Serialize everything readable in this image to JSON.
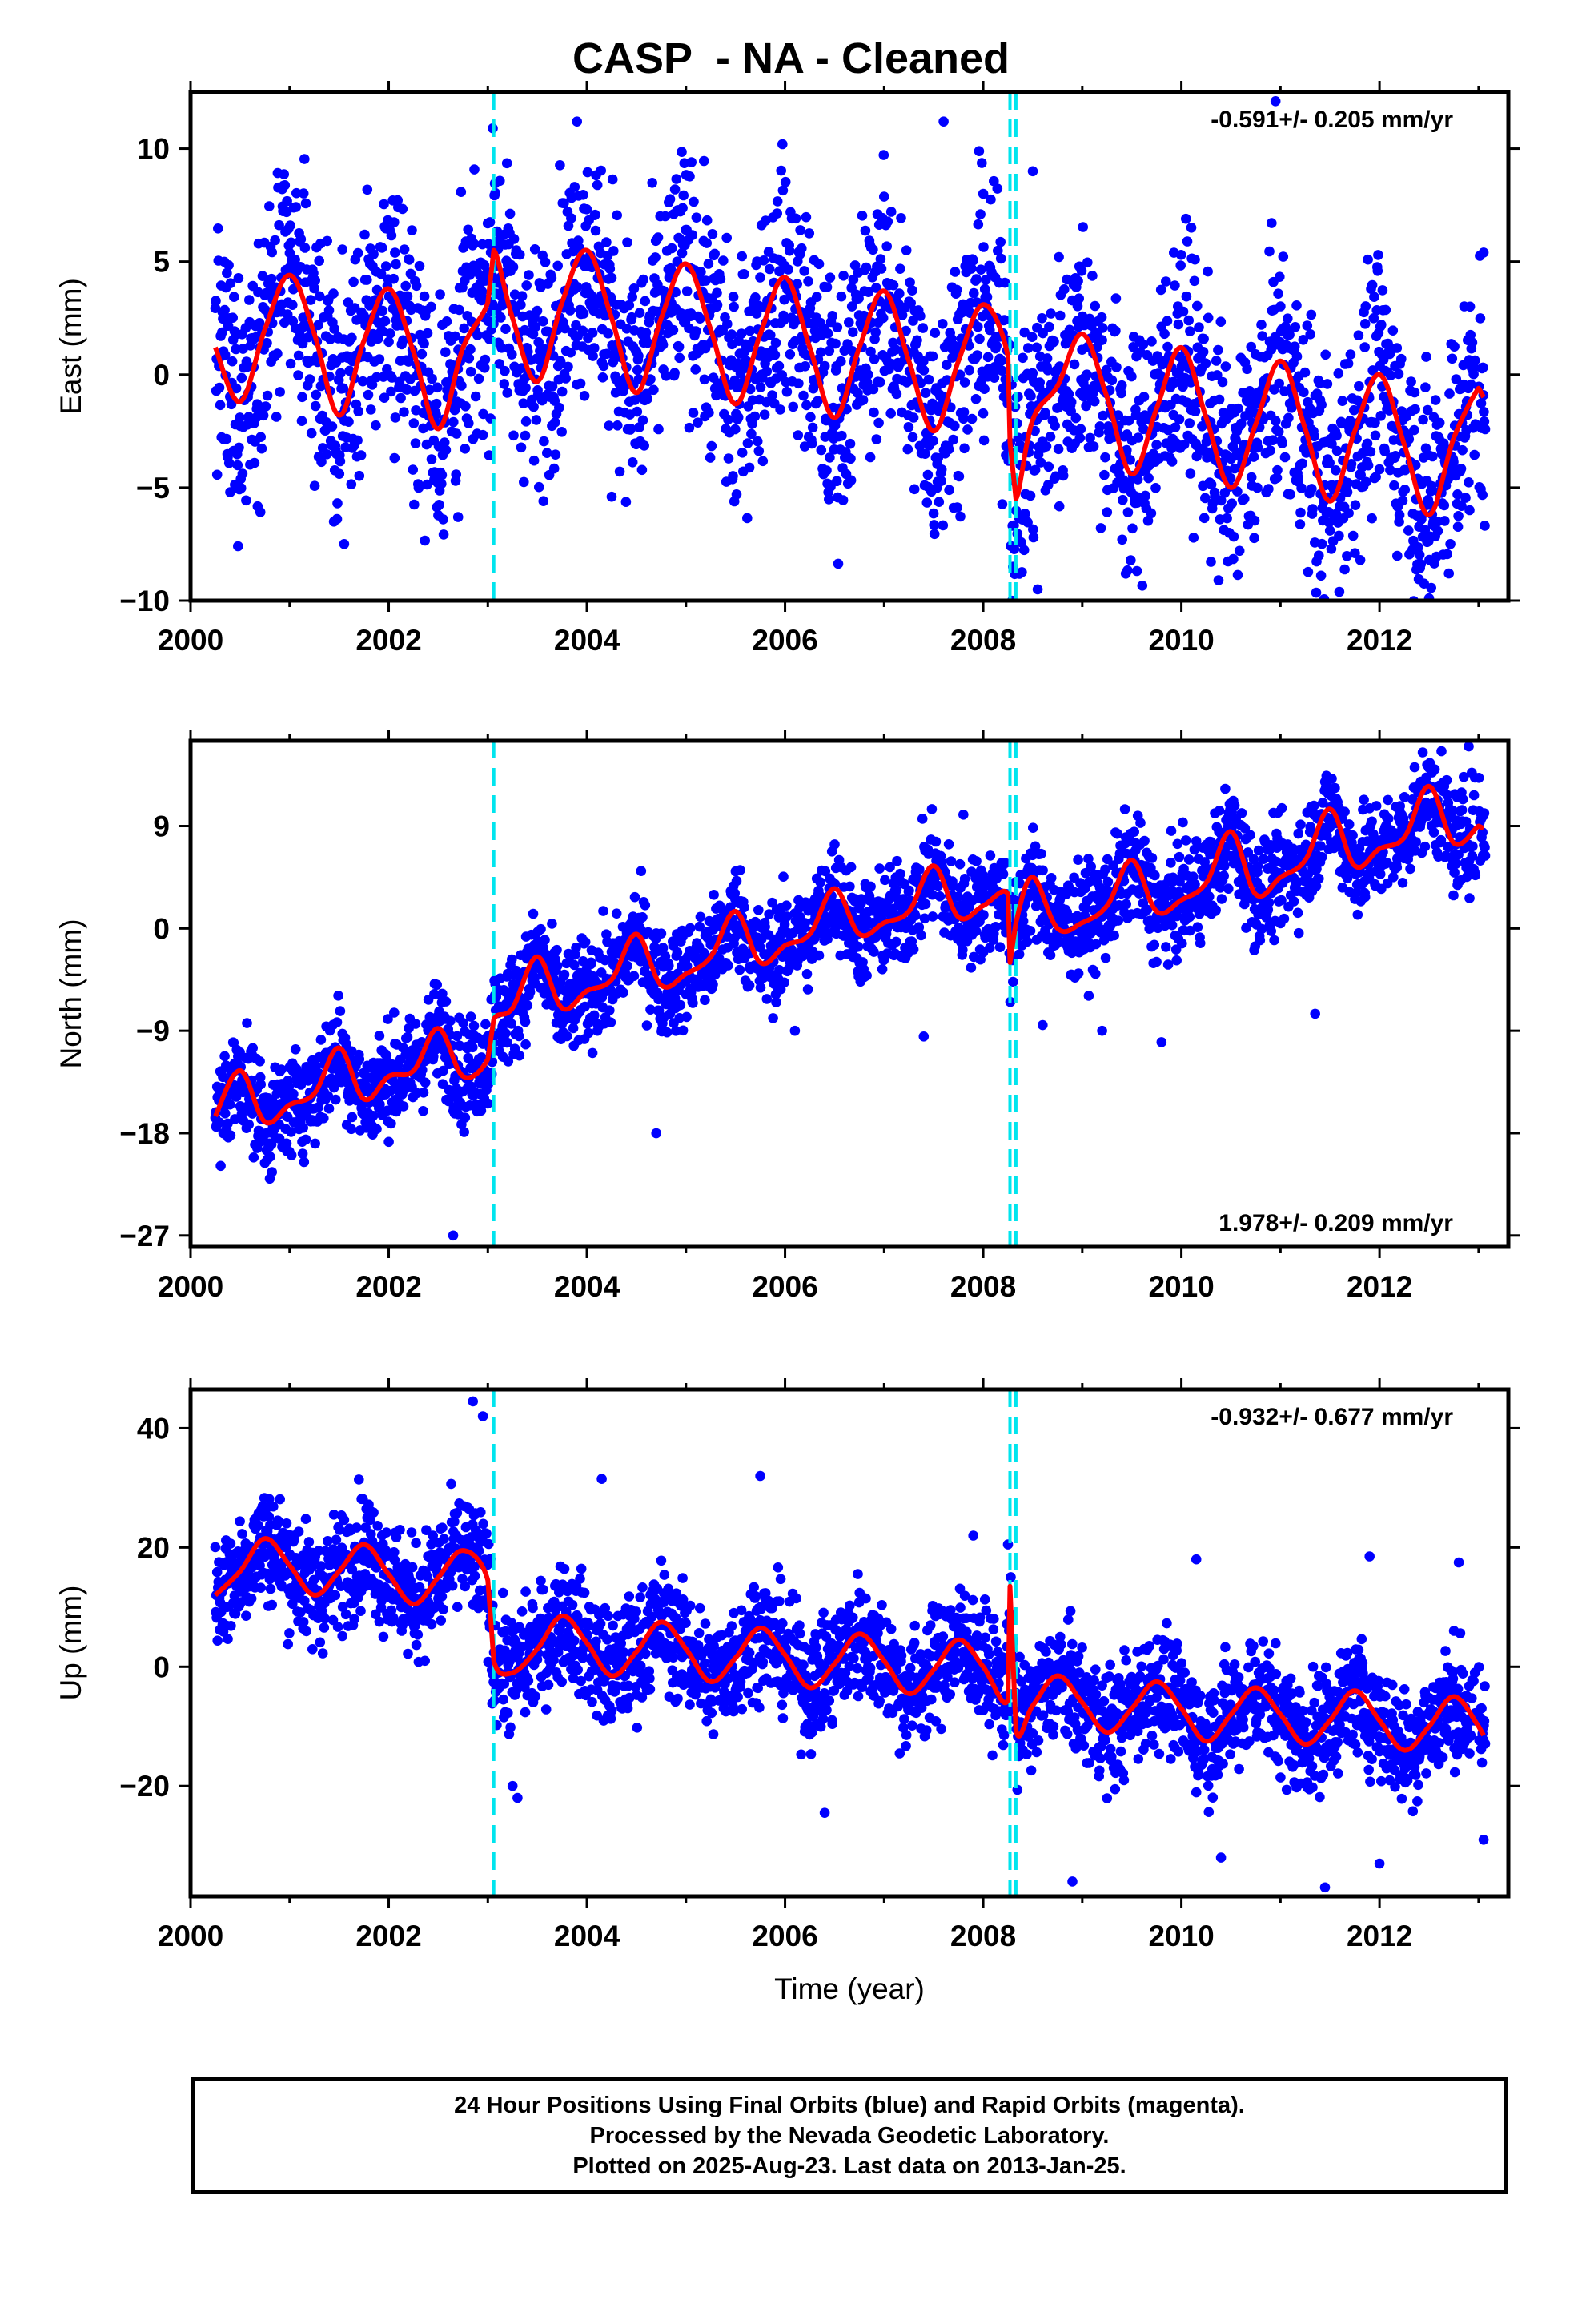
{
  "page": {
    "title": "CASP  - NA - Cleaned",
    "footer_lines": [
      "24 Hour Positions Using Final Orbits (blue) and Rapid Orbits (magenta).",
      "Processed by the Nevada Geodetic Laboratory.",
      "Plotted on 2025-Aug-23. Last data on 2013-Jan-25."
    ]
  },
  "colors": {
    "final_orbit_points": "#0000ff",
    "model_fit": "#ff0000",
    "offset_lines": "#00e5ee",
    "frame": "#000000"
  },
  "chart_data": [
    {
      "type": "scatter",
      "panel": "east",
      "ylabel": "East (mm)",
      "xlabel": "",
      "xlim": [
        2000,
        2013.3
      ],
      "ylim": [
        -10,
        12.5
      ],
      "x_ticks": [
        2000,
        2002,
        2004,
        2006,
        2008,
        2010,
        2012
      ],
      "y_ticks": [
        -10,
        -5,
        0,
        5,
        10
      ],
      "y_tick_labels": [
        "−10",
        "−5",
        "0",
        "5",
        "10"
      ],
      "rate_label": "-0.591+/- 0.205 mm/yr",
      "rate_label_position": "top-right",
      "offset_lines_x": [
        2003.06,
        2008.27,
        2008.33
      ],
      "fit": {
        "name": "model",
        "color": "#ff0000",
        "x": [
          2000.25,
          2000.5,
          2000.75,
          2001.0,
          2001.25,
          2001.5,
          2001.75,
          2002.0,
          2002.25,
          2002.5,
          2002.75,
          2003.0,
          2003.06,
          2003.25,
          2003.5,
          2003.75,
          2004.0,
          2004.25,
          2004.5,
          2004.75,
          2005.0,
          2005.25,
          2005.5,
          2005.75,
          2006.0,
          2006.25,
          2006.5,
          2006.75,
          2007.0,
          2007.25,
          2007.5,
          2007.75,
          2008.0,
          2008.25,
          2008.27,
          2008.33,
          2008.5,
          2008.75,
          2009.0,
          2009.25,
          2009.5,
          2009.75,
          2010.0,
          2010.25,
          2010.5,
          2010.75,
          2011.0,
          2011.25,
          2011.5,
          2011.75,
          2012.0,
          2012.25,
          2012.5,
          2012.75,
          2013.0,
          2013.05
        ],
        "y": [
          1.2,
          -1.2,
          2.0,
          4.4,
          1.8,
          -1.8,
          1.5,
          3.8,
          1.0,
          -2.4,
          1.2,
          3.2,
          5.5,
          2.5,
          -0.3,
          3.2,
          5.5,
          2.5,
          -0.8,
          2.5,
          4.9,
          2.0,
          -1.3,
          1.8,
          4.3,
          1.2,
          -1.9,
          1.2,
          3.7,
          0.6,
          -2.5,
          0.6,
          3.1,
          0.8,
          -3.0,
          -5.5,
          -2.0,
          -0.5,
          1.8,
          -1.0,
          -4.4,
          -1.5,
          1.2,
          -1.9,
          -5.0,
          -2.2,
          0.6,
          -2.4,
          -5.6,
          -2.5,
          0.0,
          -3.1,
          -6.2,
          -2.8,
          -0.6,
          -1.0
        ]
      },
      "point_band": {
        "lower": -3.5,
        "upper": 3.5,
        "outliers": [
          [
            2000.4,
            -5.2
          ],
          [
            2002.7,
            -6.3
          ],
          [
            2003.05,
            10.9
          ],
          [
            2003.9,
            11.2
          ],
          [
            2004.25,
            -5.4
          ],
          [
            2007.6,
            11.2
          ],
          [
            2008.0,
            8.0
          ],
          [
            2008.5,
            9.0
          ],
          [
            2008.55,
            -9.5
          ],
          [
            2010.1,
            6.5
          ],
          [
            2010.95,
            12.1
          ],
          [
            2012.5,
            -9.9
          ],
          [
            2012.7,
            -8.8
          ],
          [
            2013.05,
            5.4
          ]
        ]
      }
    },
    {
      "type": "scatter",
      "panel": "north",
      "ylabel": "North (mm)",
      "xlabel": "",
      "xlim": [
        2000,
        2013.3
      ],
      "ylim": [
        -28,
        16.5
      ],
      "x_ticks": [
        2000,
        2002,
        2004,
        2006,
        2008,
        2010,
        2012
      ],
      "y_ticks": [
        -27,
        -18,
        -9,
        0,
        9
      ],
      "y_tick_labels": [
        "−27",
        "−18",
        "−9",
        "0",
        "9"
      ],
      "rate_label": "1.978+/- 0.209 mm/yr",
      "rate_label_position": "bottom-right",
      "offset_lines_x": [
        2003.06,
        2008.27,
        2008.33
      ],
      "fit": {
        "name": "model",
        "color": "#ff0000",
        "x": [
          2000.25,
          2000.5,
          2000.75,
          2001.0,
          2001.25,
          2001.5,
          2001.75,
          2002.0,
          2002.25,
          2002.5,
          2002.75,
          2003.0,
          2003.06,
          2003.25,
          2003.5,
          2003.75,
          2004.0,
          2004.25,
          2004.5,
          2004.75,
          2005.0,
          2005.25,
          2005.5,
          2005.75,
          2006.0,
          2006.25,
          2006.5,
          2006.75,
          2007.0,
          2007.25,
          2007.5,
          2007.75,
          2008.0,
          2008.25,
          2008.27,
          2008.33,
          2008.5,
          2008.75,
          2009.0,
          2009.25,
          2009.5,
          2009.75,
          2010.0,
          2010.25,
          2010.5,
          2010.75,
          2011.0,
          2011.25,
          2011.5,
          2011.75,
          2012.0,
          2012.25,
          2012.5,
          2012.75,
          2013.0,
          2013.05
        ],
        "y": [
          -16.5,
          -12.5,
          -17.0,
          -15.5,
          -14.5,
          -10.5,
          -15.0,
          -13.0,
          -12.5,
          -8.8,
          -13.0,
          -11.5,
          -8.0,
          -7.0,
          -2.5,
          -7.0,
          -5.5,
          -4.5,
          -0.5,
          -5.0,
          -4.0,
          -2.5,
          1.5,
          -3.0,
          -1.5,
          -0.5,
          3.5,
          -0.5,
          0.5,
          1.5,
          5.5,
          1.0,
          2.0,
          3.0,
          -3.0,
          0.5,
          4.5,
          0.0,
          0.5,
          2.0,
          6.0,
          1.5,
          2.5,
          4.0,
          8.5,
          3.0,
          4.5,
          6.0,
          10.5,
          5.5,
          7.0,
          8.0,
          12.5,
          7.5,
          9.0,
          8.8
        ]
      },
      "point_band": {
        "lower": -3.0,
        "upper": 3.0,
        "outliers": [
          [
            2000.8,
            -22.0
          ],
          [
            2002.65,
            -27.0
          ],
          [
            2004.7,
            -18.0
          ],
          [
            2006.1,
            -9.0
          ],
          [
            2007.4,
            -9.5
          ],
          [
            2007.8,
            10.0
          ],
          [
            2008.6,
            -8.5
          ],
          [
            2009.2,
            -9.0
          ],
          [
            2009.8,
            -10.0
          ],
          [
            2011.35,
            -7.5
          ],
          [
            2012.5,
            17.0
          ],
          [
            2012.9,
            16.0
          ]
        ]
      }
    },
    {
      "type": "scatter",
      "panel": "up",
      "ylabel": "Up (mm)",
      "xlabel": "Time (year)",
      "xlim": [
        2000,
        2013.3
      ],
      "ylim": [
        -38.5,
        46.5
      ],
      "x_ticks": [
        2000,
        2002,
        2004,
        2006,
        2008,
        2010,
        2012
      ],
      "y_ticks": [
        -20,
        0,
        20,
        40
      ],
      "y_tick_labels": [
        "−20",
        "0",
        "20",
        "40"
      ],
      "rate_label": "-0.932+/- 0.677 mm/yr",
      "rate_label_position": "top-right",
      "offset_lines_x": [
        2003.06,
        2008.27,
        2008.33
      ],
      "fit": {
        "name": "model",
        "color": "#ff0000",
        "x": [
          2000.25,
          2000.5,
          2000.75,
          2001.0,
          2001.25,
          2001.5,
          2001.75,
          2002.0,
          2002.25,
          2002.5,
          2002.75,
          2003.0,
          2003.06,
          2003.25,
          2003.5,
          2003.75,
          2004.0,
          2004.25,
          2004.5,
          2004.75,
          2005.0,
          2005.25,
          2005.5,
          2005.75,
          2006.0,
          2006.25,
          2006.5,
          2006.75,
          2007.0,
          2007.25,
          2007.5,
          2007.75,
          2008.0,
          2008.25,
          2008.27,
          2008.33,
          2008.5,
          2008.75,
          2009.0,
          2009.25,
          2009.5,
          2009.75,
          2010.0,
          2010.25,
          2010.5,
          2010.75,
          2011.0,
          2011.25,
          2011.5,
          2011.75,
          2012.0,
          2012.25,
          2012.5,
          2012.75,
          2013.0,
          2013.05
        ],
        "y": [
          12.0,
          16.0,
          21.5,
          17.0,
          12.0,
          16.0,
          20.5,
          15.5,
          10.5,
          15.0,
          19.5,
          14.5,
          1.0,
          -1.0,
          3.0,
          8.5,
          4.0,
          -1.5,
          2.5,
          7.5,
          3.0,
          -2.5,
          1.5,
          6.5,
          2.0,
          -3.5,
          0.5,
          5.5,
          1.0,
          -4.5,
          -0.5,
          4.5,
          0.0,
          -5.5,
          13.5,
          -10.5,
          -6.5,
          -1.5,
          -6.0,
          -11.0,
          -7.0,
          -2.5,
          -7.0,
          -12.5,
          -8.0,
          -3.5,
          -8.0,
          -13.0,
          -9.0,
          -4.0,
          -9.0,
          -14.0,
          -10.0,
          -5.0,
          -10.0,
          -11.5
        ]
      },
      "point_band": {
        "lower": -6.5,
        "upper": 6.5,
        "outliers": [
          [
            2002.85,
            44.5
          ],
          [
            2002.95,
            42.0
          ],
          [
            2003.25,
            -20.0
          ],
          [
            2003.3,
            -22.0
          ],
          [
            2004.15,
            31.5
          ],
          [
            2005.75,
            32.0
          ],
          [
            2006.4,
            -24.5
          ],
          [
            2007.9,
            22.0
          ],
          [
            2008.25,
            20.5
          ],
          [
            2008.9,
            -36.0
          ],
          [
            2010.15,
            18.0
          ],
          [
            2010.4,
            -32.0
          ],
          [
            2011.45,
            -37.0
          ],
          [
            2011.9,
            18.5
          ],
          [
            2012.0,
            -33.0
          ],
          [
            2012.8,
            17.5
          ],
          [
            2013.05,
            -29.0
          ]
        ]
      }
    }
  ]
}
